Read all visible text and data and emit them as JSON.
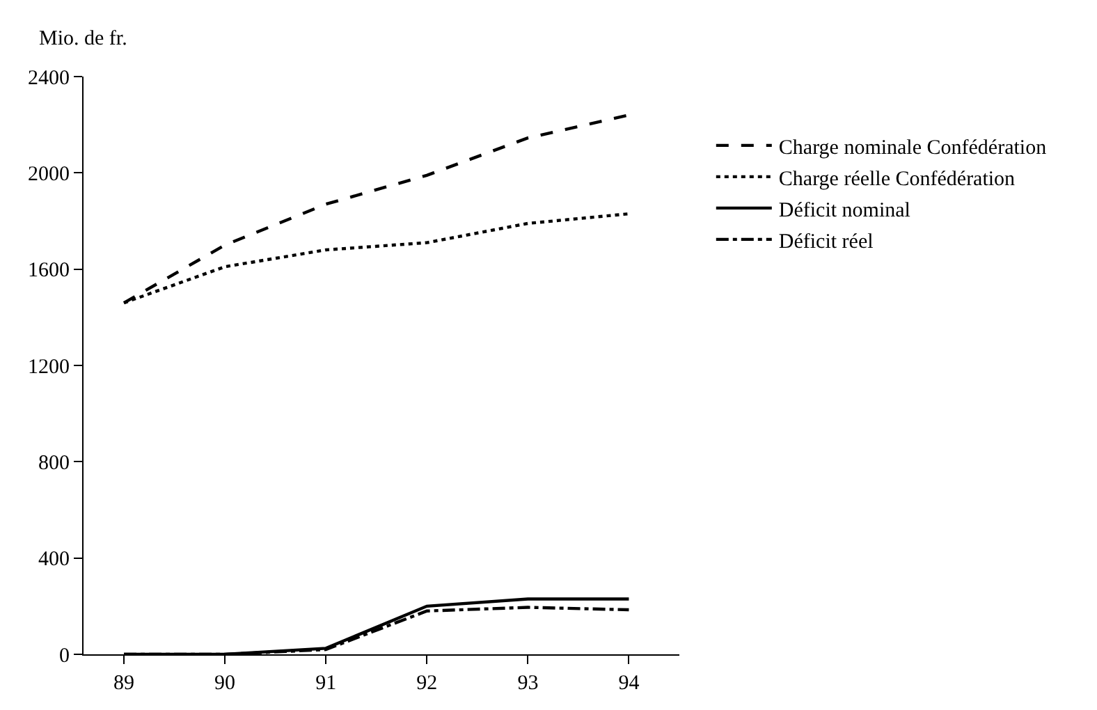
{
  "chart_data": {
    "type": "line",
    "ylabel": "Mio. de fr.",
    "categories": [
      "89",
      "90",
      "91",
      "92",
      "93",
      "94"
    ],
    "ylim": [
      0,
      2400
    ],
    "yticks": [
      0,
      400,
      800,
      1200,
      1600,
      2000,
      2400
    ],
    "legend": "right",
    "marker": "none",
    "series": [
      {
        "name": "Charge nominale Confédération",
        "color": "#000000",
        "line_style": "dashed",
        "values": [
          1460,
          1700,
          1870,
          1990,
          2145,
          2240
        ]
      },
      {
        "name": "Charge réelle Confédération",
        "color": "#000000",
        "line_style": "dotted",
        "values": [
          1460,
          1610,
          1680,
          1710,
          1790,
          1830
        ]
      },
      {
        "name": "Déficit nominal",
        "color": "#000000",
        "line_style": "solid",
        "values": [
          0,
          0,
          25,
          200,
          230,
          230
        ]
      },
      {
        "name": "Déficit réel",
        "color": "#000000",
        "line_style": "dashdot",
        "values": [
          0,
          0,
          20,
          180,
          195,
          185
        ]
      }
    ]
  }
}
